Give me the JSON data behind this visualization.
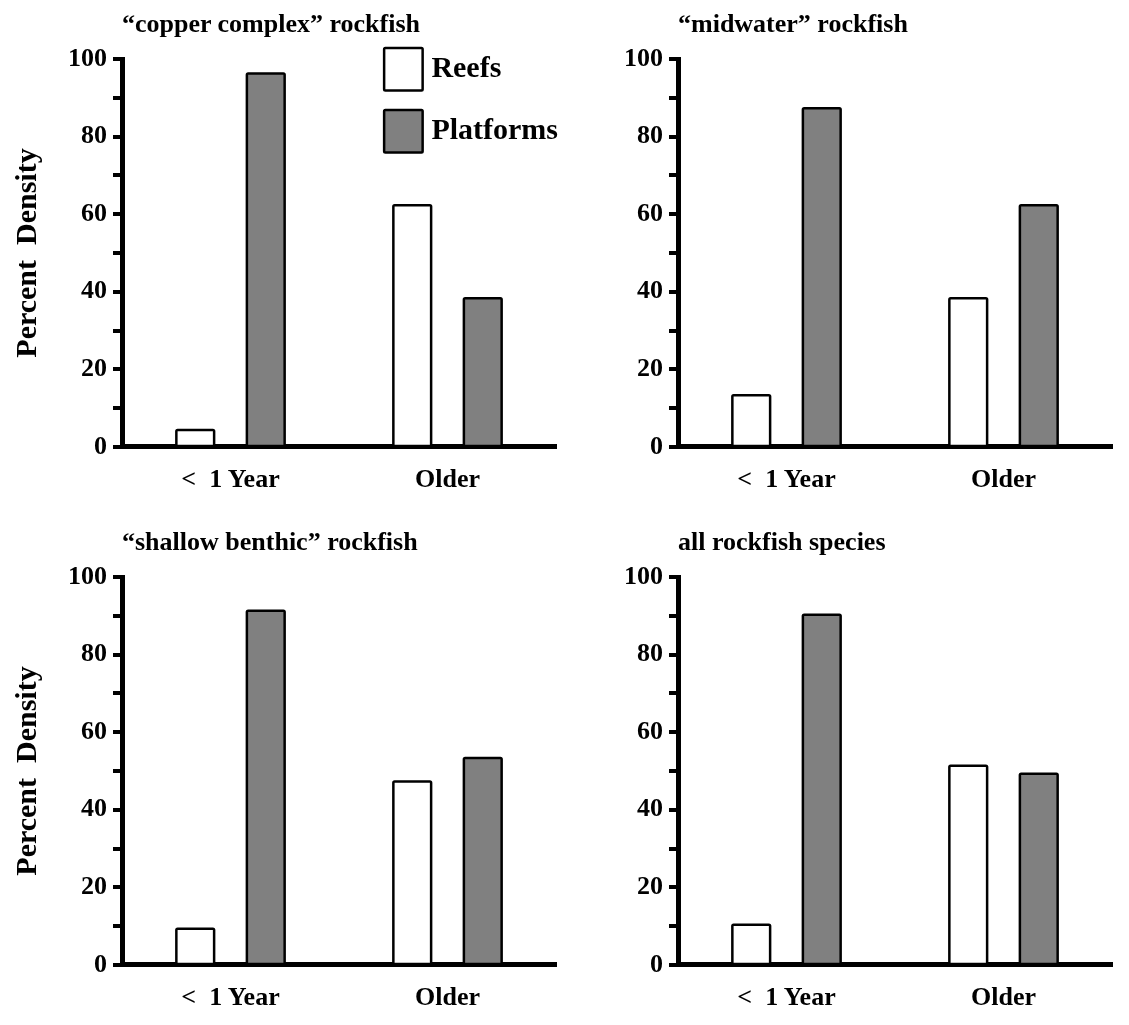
{
  "chart_data": [
    {
      "type": "bar",
      "title": "“copper complex” rockfish",
      "ylabel": "Percent  Density",
      "categories": [
        "<  1 Year",
        "Older"
      ],
      "legend": "top right",
      "series": [
        {
          "name": "Reefs",
          "color": "#ffffff",
          "values": [
            4,
            62
          ]
        },
        {
          "name": "Platforms",
          "color": "#808080",
          "values": [
            96,
            38
          ]
        }
      ],
      "ylim": [
        0,
        100
      ],
      "yticks": [
        0,
        {
          "value": 10,
          "label": null
        },
        20,
        {
          "value": 30,
          "label": null
        },
        40,
        {
          "value": 50,
          "label": null
        },
        60,
        {
          "value": 70,
          "label": null
        },
        80,
        {
          "value": 90,
          "label": null
        },
        100
      ]
    },
    {
      "type": "bar",
      "title": "“midwater” rockfish",
      "categories": [
        "<  1 Year",
        "Older"
      ],
      "series": [
        {
          "color": "#ffffff",
          "values": [
            13,
            38
          ]
        },
        {
          "color": "#808080",
          "values": [
            87,
            62
          ]
        }
      ],
      "ylim": [
        0,
        100
      ],
      "yticks": [
        0,
        {
          "value": 10,
          "label": null
        },
        20,
        {
          "value": 30,
          "label": null
        },
        40,
        {
          "value": 50,
          "label": null
        },
        60,
        {
          "value": 70,
          "label": null
        },
        80,
        {
          "value": 90,
          "label": null
        },
        100
      ]
    },
    {
      "type": "bar",
      "title": "“shallow benthic” rockfish",
      "ylabel": "Percent  Density",
      "categories": [
        "<  1 Year",
        "Older"
      ],
      "series": [
        {
          "color": "#ffffff",
          "values": [
            9,
            47
          ]
        },
        {
          "color": "#808080",
          "values": [
            91,
            53
          ]
        }
      ],
      "ylim": [
        0,
        100
      ],
      "yticks": [
        0,
        {
          "value": 10,
          "label": null
        },
        20,
        {
          "value": 30,
          "label": null
        },
        40,
        {
          "value": 50,
          "label": null
        },
        60,
        {
          "value": 70,
          "label": null
        },
        80,
        {
          "value": 90,
          "label": null
        },
        100
      ]
    },
    {
      "type": "bar",
      "title": "all rockfish species",
      "categories": [
        "<  1 Year",
        "Older"
      ],
      "series": [
        {
          "color": "#ffffff",
          "values": [
            10,
            51
          ]
        },
        {
          "color": "#808080",
          "values": [
            90,
            49
          ]
        }
      ],
      "ylim": [
        0,
        100
      ],
      "yticks": [
        0,
        {
          "value": 10,
          "label": null
        },
        20,
        {
          "value": 30,
          "label": null
        },
        40,
        {
          "value": 50,
          "label": null
        },
        60,
        {
          "value": 70,
          "label": null
        },
        80,
        {
          "value": 90,
          "label": null
        },
        100
      ]
    }
  ]
}
